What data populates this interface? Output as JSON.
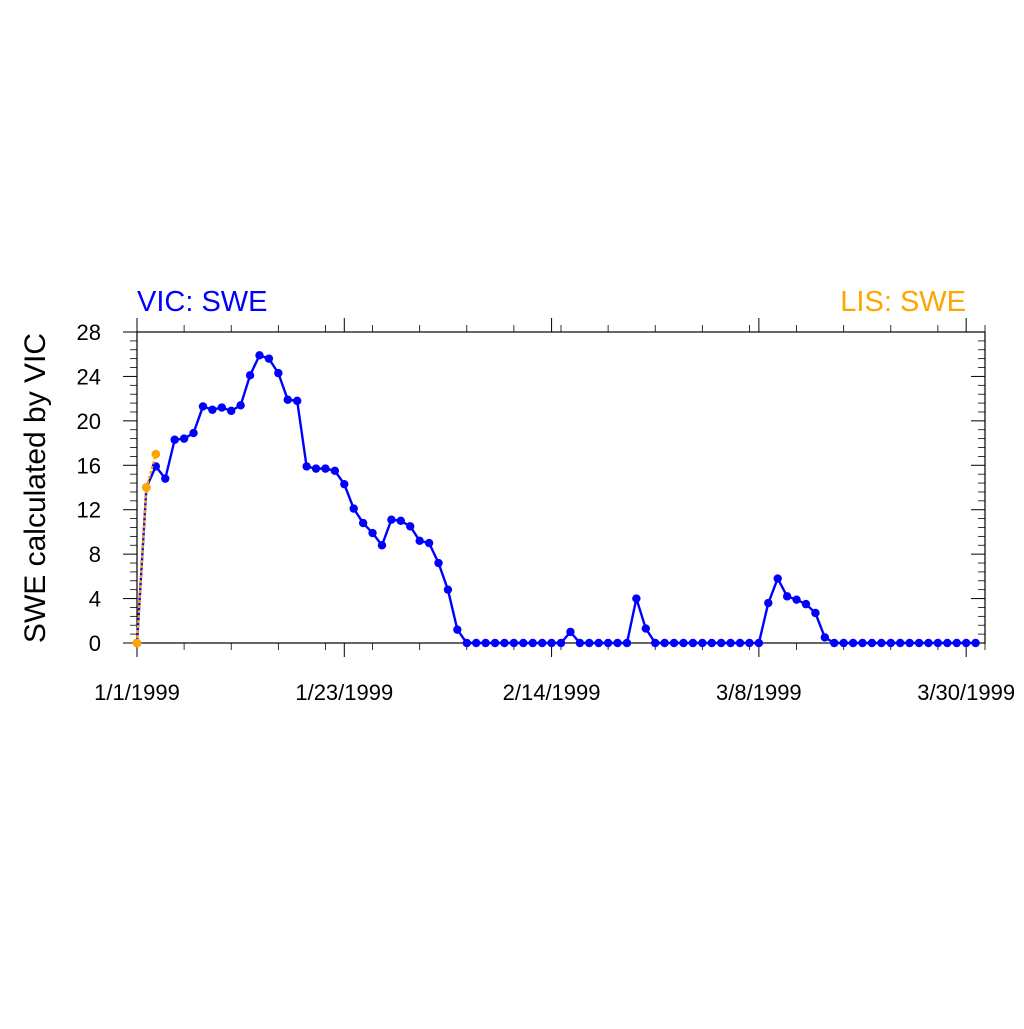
{
  "chart_data": {
    "type": "line",
    "title_left": "VIC: SWE",
    "title_right": "LIS: SWE",
    "ylabel": "SWE calculated by VIC",
    "xlabel": "",
    "ylim": [
      0,
      28
    ],
    "y_ticks": [
      0,
      4,
      8,
      12,
      16,
      20,
      24,
      28
    ],
    "x_ticks": [
      "1/1/1999",
      "1/23/1999",
      "2/14/1999",
      "3/8/1999",
      "3/30/1999"
    ],
    "x_range": [
      "1/1/1999",
      "4/1/1999"
    ],
    "grid": false,
    "colors": {
      "vic": "#0000ff",
      "lis": "#ffa500",
      "axis": "#000000"
    },
    "series": [
      {
        "name": "VIC: SWE",
        "line_style": "solid",
        "color": "#0000ff",
        "x": [
          "1/1/1999",
          "1/2/1999",
          "1/3/1999",
          "1/4/1999",
          "1/5/1999",
          "1/6/1999",
          "1/7/1999",
          "1/8/1999",
          "1/9/1999",
          "1/10/1999",
          "1/11/1999",
          "1/12/1999",
          "1/13/1999",
          "1/14/1999",
          "1/15/1999",
          "1/16/1999",
          "1/17/1999",
          "1/18/1999",
          "1/19/1999",
          "1/20/1999",
          "1/21/1999",
          "1/22/1999",
          "1/23/1999",
          "1/24/1999",
          "1/25/1999",
          "1/26/1999",
          "1/27/1999",
          "1/28/1999",
          "1/29/1999",
          "1/30/1999",
          "1/31/1999",
          "2/1/1999",
          "2/2/1999",
          "2/3/1999",
          "2/4/1999",
          "2/5/1999",
          "2/6/1999",
          "2/7/1999",
          "2/8/1999",
          "2/9/1999",
          "2/10/1999",
          "2/11/1999",
          "2/12/1999",
          "2/13/1999",
          "2/14/1999",
          "2/15/1999",
          "2/16/1999",
          "2/17/1999",
          "2/18/1999",
          "2/19/1999",
          "2/20/1999",
          "2/21/1999",
          "2/22/1999",
          "2/23/1999",
          "2/24/1999",
          "2/25/1999",
          "2/26/1999",
          "2/27/1999",
          "2/28/1999",
          "3/1/1999",
          "3/2/1999",
          "3/3/1999",
          "3/4/1999",
          "3/5/1999",
          "3/6/1999",
          "3/7/1999",
          "3/8/1999",
          "3/9/1999",
          "3/10/1999",
          "3/11/1999",
          "3/12/1999",
          "3/13/1999",
          "3/14/1999",
          "3/15/1999",
          "3/16/1999",
          "3/17/1999",
          "3/18/1999",
          "3/19/1999",
          "3/20/1999",
          "3/21/1999",
          "3/22/1999",
          "3/23/1999",
          "3/24/1999",
          "3/25/1999",
          "3/26/1999",
          "3/27/1999",
          "3/28/1999",
          "3/29/1999",
          "3/30/1999",
          "3/31/1999"
        ],
        "values": [
          0,
          14.0,
          15.9,
          14.8,
          18.3,
          18.4,
          18.9,
          21.3,
          21.0,
          21.2,
          20.9,
          21.4,
          24.1,
          25.9,
          25.6,
          24.3,
          21.9,
          21.8,
          15.9,
          15.7,
          15.7,
          15.5,
          14.3,
          12.1,
          10.8,
          9.9,
          8.8,
          11.1,
          11.0,
          10.5,
          9.2,
          9.0,
          7.2,
          4.8,
          1.2,
          0,
          0,
          0,
          0,
          0,
          0,
          0,
          0,
          0,
          0,
          0,
          1.0,
          0,
          0,
          0,
          0,
          0,
          0,
          4.0,
          1.3,
          0,
          0,
          0,
          0,
          0,
          0,
          0,
          0,
          0,
          0,
          0,
          0,
          3.6,
          5.8,
          4.2,
          3.9,
          3.5,
          2.7,
          0.5,
          0,
          0,
          0,
          0,
          0,
          0,
          0,
          0,
          0,
          0,
          0,
          0,
          0,
          0,
          0,
          0
        ]
      },
      {
        "name": "LIS: SWE",
        "line_style": "dashed",
        "color": "#ffa500",
        "x": [
          "1/1/1999",
          "1/2/1999",
          "1/3/1999"
        ],
        "values": [
          0,
          14.0,
          17.0
        ]
      }
    ]
  }
}
